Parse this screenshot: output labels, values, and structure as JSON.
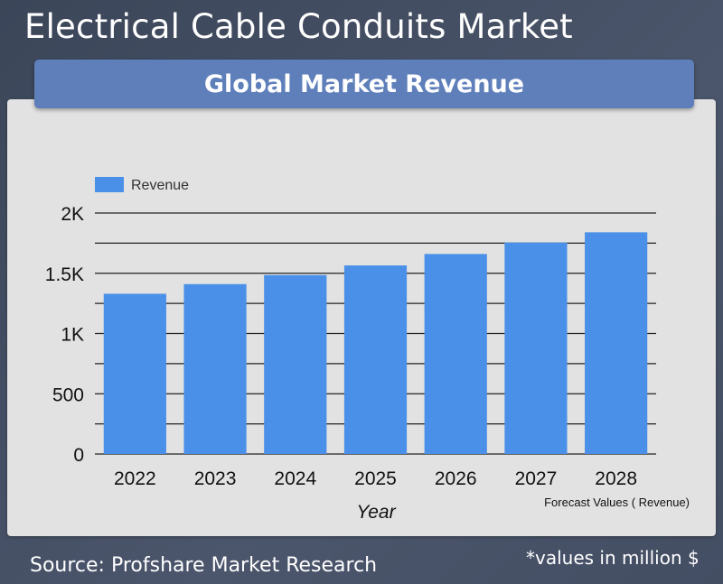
{
  "page": {
    "title": "Electrical Cable Conduits Market",
    "source": "Source: Profshare Market Research",
    "note": "*values in million $"
  },
  "chart_data": {
    "type": "bar",
    "title": "Global Market Revenue",
    "xlabel": "Year",
    "ylabel": "",
    "categories": [
      "2022",
      "2023",
      "2024",
      "2025",
      "2026",
      "2027",
      "2028"
    ],
    "series": [
      {
        "name": "Revenue",
        "values": [
          1330,
          1410,
          1485,
          1565,
          1660,
          1755,
          1840
        ],
        "color": "#4a90e8"
      }
    ],
    "ylim": [
      0,
      2000
    ],
    "yticks": [
      {
        "value": 0,
        "label": "0"
      },
      {
        "value": 500,
        "label": "500"
      },
      {
        "value": 1000,
        "label": "1K"
      },
      {
        "value": 1500,
        "label": "1.5K"
      },
      {
        "value": 2000,
        "label": "2K"
      }
    ],
    "gridline_step": 250,
    "grid": true,
    "legend": "top-left",
    "annotation": "Forecast Values ( Revenue)"
  }
}
